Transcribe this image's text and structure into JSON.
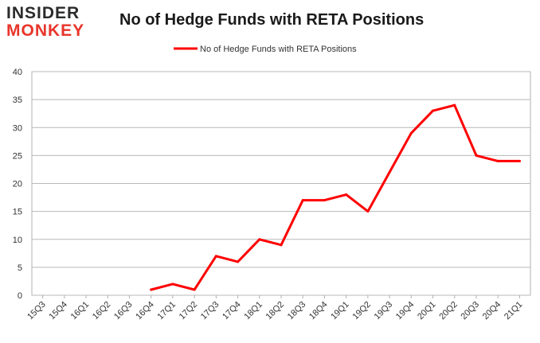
{
  "logo": {
    "line1": "INSIDER",
    "line2": "MONKEY"
  },
  "chart_data": {
    "type": "line",
    "title": "No of Hedge Funds with RETA Positions",
    "xlabel": "",
    "ylabel": "",
    "ylim": [
      0,
      40
    ],
    "yticks": [
      0,
      5,
      10,
      15,
      20,
      25,
      30,
      35,
      40
    ],
    "grid": true,
    "legend": "top-center",
    "color": "#ff0000",
    "categories": [
      "15Q3",
      "15Q4",
      "16Q1",
      "16Q2",
      "16Q3",
      "16Q4",
      "17Q1",
      "17Q2",
      "17Q3",
      "17Q4",
      "18Q1",
      "18Q2",
      "18Q3",
      "18Q4",
      "19Q1",
      "19Q2",
      "19Q3",
      "19Q4",
      "20Q1",
      "20Q2",
      "20Q3",
      "20Q4",
      "21Q1"
    ],
    "series": [
      {
        "name": "No of Hedge Funds with RETA Positions",
        "values": [
          null,
          null,
          null,
          null,
          null,
          1,
          2,
          1,
          7,
          6,
          10,
          9,
          17,
          17,
          18,
          15,
          22,
          29,
          33,
          34,
          25,
          24,
          24
        ]
      }
    ]
  }
}
